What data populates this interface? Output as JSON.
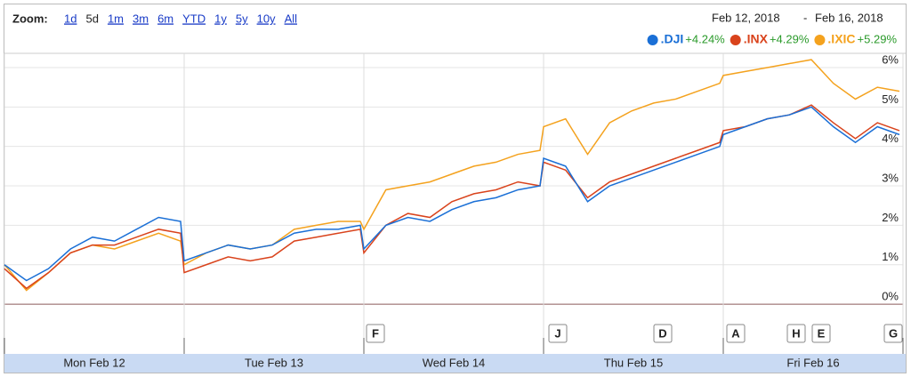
{
  "chart_data": {
    "type": "line",
    "zoom_label": "Zoom:",
    "zoom_options": [
      "1d",
      "5d",
      "1m",
      "3m",
      "6m",
      "YTD",
      "1y",
      "5y",
      "10y",
      "All"
    ],
    "date_from": "Feb 12, 2018",
    "date_sep": "-",
    "date_to": "Feb 16, 2018",
    "categories": [
      null,
      null,
      null,
      null,
      "Mon Feb 12",
      null,
      null,
      null,
      null,
      null,
      null,
      null,
      null,
      "Tue Feb 13",
      null,
      null,
      null,
      null,
      null,
      null,
      null,
      null,
      "Wed Feb 14",
      null,
      null,
      null,
      null,
      null,
      null,
      null,
      null,
      "Thu Feb 15",
      null,
      null,
      null,
      null,
      null,
      null,
      null,
      null,
      "Fri Feb 16",
      null,
      null,
      null,
      null
    ],
    "series": [
      {
        "name": ".DJI",
        "change": "+4.24%",
        "color": "#1a6fd6",
        "values": [
          1.0,
          0.6,
          0.9,
          1.4,
          1.7,
          1.6,
          1.9,
          2.2,
          2.1,
          1.1,
          1.3,
          1.5,
          1.4,
          1.5,
          1.8,
          1.9,
          1.9,
          2.0,
          1.4,
          2.0,
          2.2,
          2.1,
          2.4,
          2.6,
          2.7,
          2.9,
          3.0,
          3.7,
          3.5,
          2.6,
          3.0,
          3.2,
          3.4,
          3.6,
          3.8,
          4.0,
          4.3,
          4.5,
          4.7,
          4.8,
          5.0,
          4.5,
          4.1,
          4.5,
          4.3
        ]
      },
      {
        "name": ".INX",
        "change": "+4.29%",
        "color": "#d9431c",
        "values": [
          0.9,
          0.4,
          0.8,
          1.3,
          1.5,
          1.5,
          1.7,
          1.9,
          1.8,
          0.8,
          1.0,
          1.2,
          1.1,
          1.2,
          1.6,
          1.7,
          1.8,
          1.9,
          1.3,
          2.0,
          2.3,
          2.2,
          2.6,
          2.8,
          2.9,
          3.1,
          3.0,
          3.6,
          3.4,
          2.7,
          3.1,
          3.3,
          3.5,
          3.7,
          3.9,
          4.1,
          4.4,
          4.5,
          4.7,
          4.8,
          5.05,
          4.6,
          4.2,
          4.6,
          4.4
        ]
      },
      {
        "name": ".IXIC",
        "change": "+5.29%",
        "color": "#f4a21e",
        "values": [
          1.0,
          0.35,
          0.8,
          1.3,
          1.5,
          1.4,
          1.6,
          1.8,
          1.6,
          1.0,
          1.3,
          1.5,
          1.4,
          1.5,
          1.9,
          2.0,
          2.1,
          2.1,
          1.9,
          2.9,
          3.0,
          3.1,
          3.3,
          3.5,
          3.6,
          3.8,
          3.9,
          4.5,
          4.7,
          3.8,
          4.6,
          4.9,
          5.1,
          5.2,
          5.4,
          5.6,
          5.8,
          5.9,
          6.0,
          6.1,
          6.2,
          5.6,
          5.2,
          5.5,
          5.4
        ]
      }
    ],
    "ylim": [
      -1.26,
      6.36
    ],
    "yticks": [
      {
        "value": 0,
        "label": "0%"
      },
      {
        "value": 1,
        "label": "1%"
      },
      {
        "value": 2,
        "label": "2%"
      },
      {
        "value": 3,
        "label": "3%"
      },
      {
        "value": 4,
        "label": "4%"
      },
      {
        "value": 5,
        "label": "5%"
      },
      {
        "value": 6,
        "label": "6%"
      }
    ],
    "grid": true,
    "flags": [
      "F",
      "J",
      "D",
      "A",
      "H",
      "E",
      "G"
    ]
  }
}
